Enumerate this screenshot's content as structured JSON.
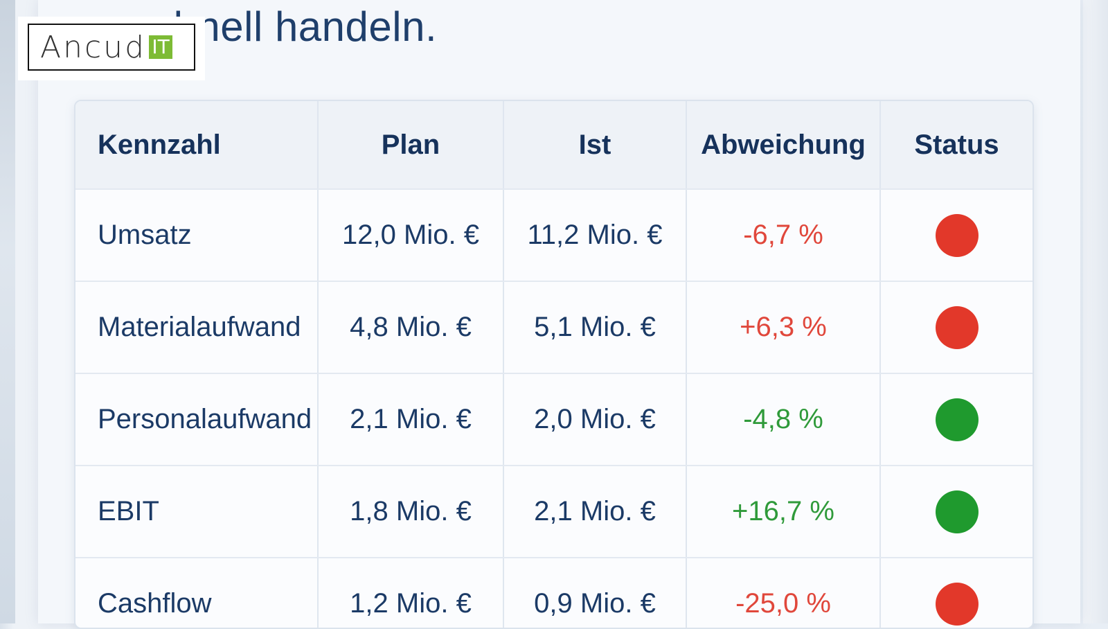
{
  "headline": "…hnell handeln.",
  "logo": {
    "text": "Ancud",
    "badge": "IT",
    "badge_color": "#7dbb35"
  },
  "table": {
    "headers": [
      "Kennzahl",
      "Plan",
      "Ist",
      "Abweichung",
      "Status"
    ],
    "rows": [
      {
        "kennzahl": "Umsatz",
        "plan": "12,0 Mio. €",
        "ist": "11,2 Mio. €",
        "abweichung": "-6,7 %",
        "status": "red"
      },
      {
        "kennzahl": "Materialaufwand",
        "plan": "4,8 Mio. €",
        "ist": "5,1 Mio. €",
        "abweichung": "+6,3 %",
        "status": "red"
      },
      {
        "kennzahl": "Personalaufwand",
        "plan": "2,1 Mio. €",
        "ist": "2,0 Mio. €",
        "abweichung": "-4,8 %",
        "status": "green"
      },
      {
        "kennzahl": "EBIT",
        "plan": "1,8 Mio. €",
        "ist": "2,1 Mio. €",
        "abweichung": "+16,7 %",
        "status": "green"
      },
      {
        "kennzahl": "Cashflow",
        "plan": "1,2 Mio. €",
        "ist": "0,9 Mio. €",
        "abweichung": "-25,0 %",
        "status": "red"
      }
    ]
  },
  "colors": {
    "red": "#e2382a",
    "green": "#1f9a2e",
    "header_text": "#16325b"
  }
}
